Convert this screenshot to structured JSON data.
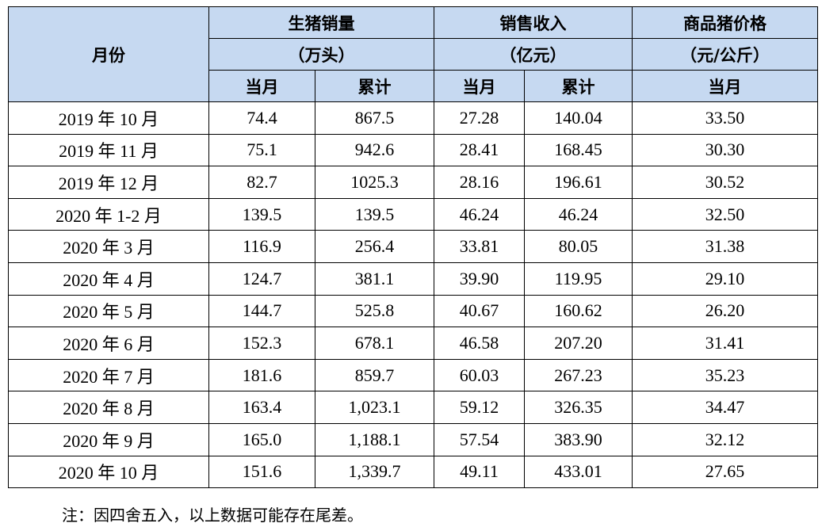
{
  "table": {
    "first_header": "月份",
    "groups": [
      {
        "title": "生猪销量",
        "unit": "（万头）",
        "subs": [
          "当月",
          "累计"
        ]
      },
      {
        "title": "销售收入",
        "unit": "（亿元）",
        "subs": [
          "当月",
          "累计"
        ]
      },
      {
        "title": "商品猪价格",
        "unit": "（元/公斤）",
        "subs": [
          "当月"
        ]
      }
    ],
    "rows": [
      [
        "2019 年 10 月",
        "74.4",
        "867.5",
        "27.28",
        "140.04",
        "33.50"
      ],
      [
        "2019 年 11 月",
        "75.1",
        "942.6",
        "28.41",
        "168.45",
        "30.30"
      ],
      [
        "2019 年 12 月",
        "82.7",
        "1025.3",
        "28.16",
        "196.61",
        "30.52"
      ],
      [
        "2020 年 1-2 月",
        "139.5",
        "139.5",
        "46.24",
        "46.24",
        "32.50"
      ],
      [
        "2020 年 3 月",
        "116.9",
        "256.4",
        "33.81",
        "80.05",
        "31.38"
      ],
      [
        "2020 年 4 月",
        "124.7",
        "381.1",
        "39.90",
        "119.95",
        "29.10"
      ],
      [
        "2020 年 5 月",
        "144.7",
        "525.8",
        "40.67",
        "160.62",
        "26.20"
      ],
      [
        "2020 年 6 月",
        "152.3",
        "678.1",
        "46.58",
        "207.20",
        "31.41"
      ],
      [
        "2020 年 7 月",
        "181.6",
        "859.7",
        "60.03",
        "267.23",
        "35.23"
      ],
      [
        "2020 年 8 月",
        "163.4",
        "1,023.1",
        "59.12",
        "326.35",
        "34.47"
      ],
      [
        "2020 年 9 月",
        "165.0",
        "1,188.1",
        "57.54",
        "383.90",
        "32.12"
      ],
      [
        "2020 年 10 月",
        "151.6",
        "1,339.7",
        "49.11",
        "433.01",
        "27.65"
      ]
    ]
  },
  "note": "注：因四舍五入，以上数据可能存在尾差。"
}
